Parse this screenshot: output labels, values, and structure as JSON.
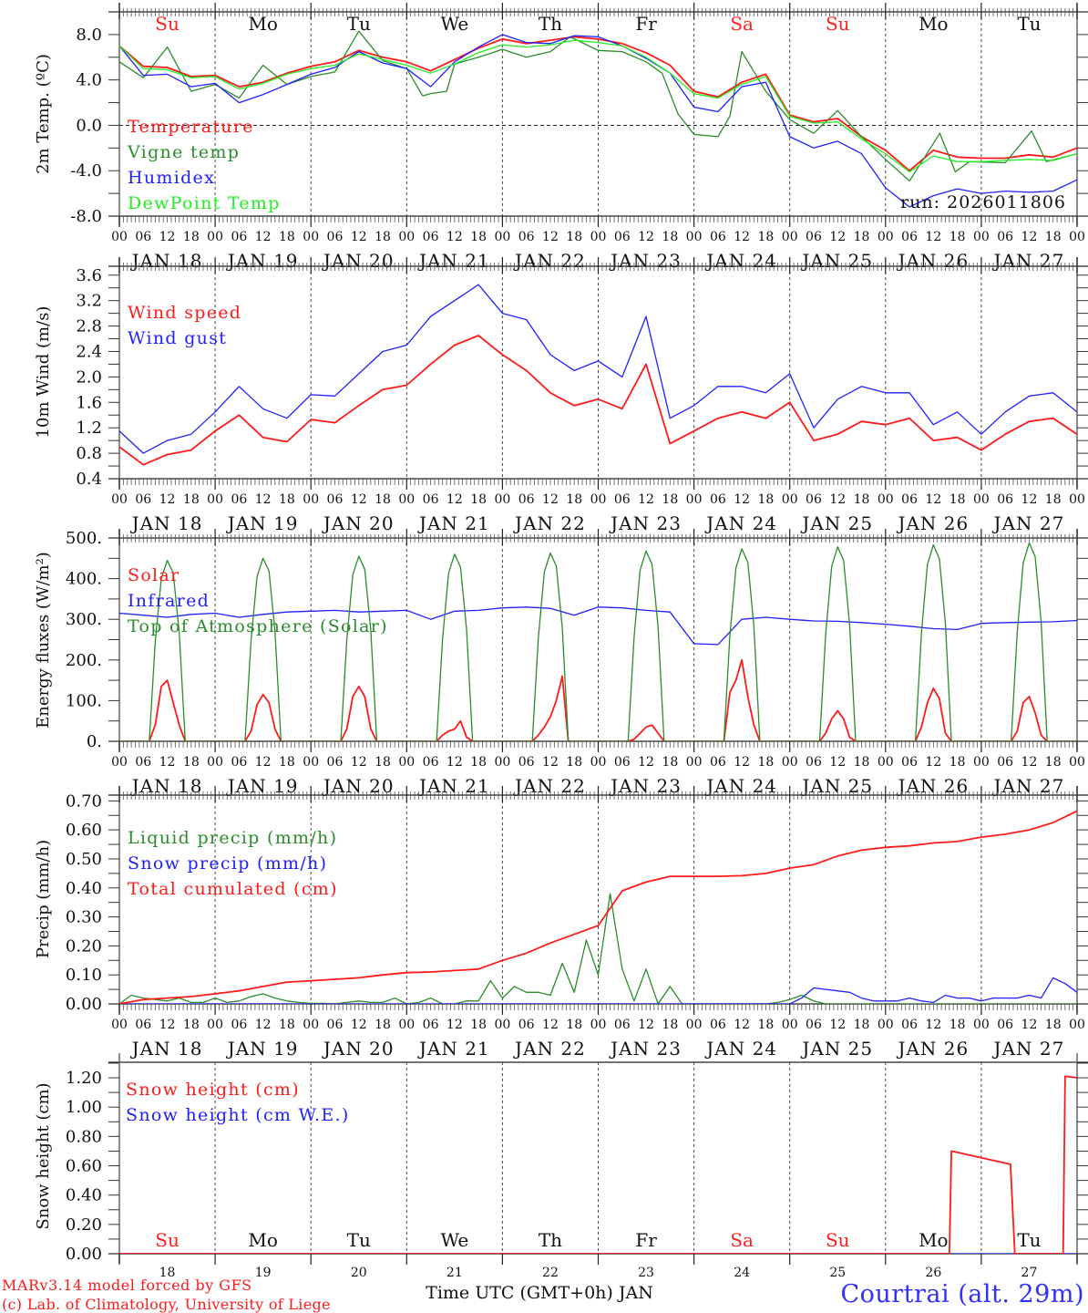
{
  "header": {
    "weekdays": [
      {
        "label": "Su",
        "color": "#ff2020"
      },
      {
        "label": "Mo",
        "color": "#111111"
      },
      {
        "label": "Tu",
        "color": "#111111"
      },
      {
        "label": "We",
        "color": "#111111"
      },
      {
        "label": "Th",
        "color": "#111111"
      },
      {
        "label": "Fr",
        "color": "#111111"
      },
      {
        "label": "Sa",
        "color": "#ff2020"
      },
      {
        "label": "Su",
        "color": "#ff2020"
      },
      {
        "label": "Mo",
        "color": "#111111"
      },
      {
        "label": "Tu",
        "color": "#111111"
      }
    ]
  },
  "x_axis": {
    "hour_labels": [
      "00",
      "06",
      "12",
      "18"
    ],
    "final_hour_label": "00",
    "date_labels": [
      "JAN 18",
      "JAN 19",
      "JAN 20",
      "JAN 21",
      "JAN 22",
      "JAN 23",
      "JAN 24",
      "JAN 25",
      "JAN 26",
      "JAN 27"
    ],
    "day_numbers": [
      "18",
      "19",
      "20",
      "21",
      "22",
      "23",
      "24",
      "25",
      "26",
      "27"
    ],
    "title": "Time UTC (GMT+0h) JAN",
    "range_hours": [
      0,
      240
    ]
  },
  "run_label": "run: 2026011806",
  "footer": {
    "credit_line1": "MARv3.14 model forced by GFS",
    "credit_line2": "(c) Lab. of Climatology, University of Liege",
    "station": "Courtrai (alt. 29m)"
  },
  "colors": {
    "red": "#ff1a1a",
    "blue": "#2020ff",
    "dark_green": "#2a8c2a",
    "light_green": "#22ee22",
    "axis": "#222222"
  },
  "chart_data": [
    {
      "type": "line",
      "title": "",
      "ylabel": "2m Temp. (ºC)",
      "ylim": [
        -8,
        10
      ],
      "yticks": [
        "8.0",
        "4.0",
        "0.0",
        "-4.0",
        "-8.0"
      ],
      "zero_line": true,
      "series": [
        {
          "name": "Temperature",
          "color": "#ff1a1a",
          "x_step_hours": 6,
          "y": [
            7.0,
            5.2,
            5.1,
            4.3,
            4.4,
            3.4,
            3.8,
            4.6,
            5.2,
            5.6,
            6.6,
            6.0,
            5.6,
            4.8,
            5.8,
            6.8,
            7.6,
            7.2,
            7.5,
            7.8,
            7.6,
            7.2,
            6.4,
            5.3,
            3.0,
            2.5,
            3.8,
            4.5,
            0.9,
            0.3,
            0.6,
            -1.0,
            -2.2,
            -4.0,
            -2.2,
            -2.8,
            -2.9,
            -2.9,
            -2.6,
            -2.8,
            -2.0
          ]
        },
        {
          "name": "Vigne temp",
          "color": "#2a8c2a",
          "x": [
            0,
            6,
            12,
            18,
            24,
            30,
            36,
            42,
            48,
            54,
            60,
            66,
            72,
            76,
            78,
            82,
            84,
            90,
            96,
            102,
            108,
            113,
            120,
            126,
            132,
            136,
            140,
            144,
            150,
            153,
            156,
            162,
            168,
            174,
            180,
            186,
            192,
            198,
            205.6,
            209.5,
            213,
            222,
            228.6,
            232.3,
            240
          ],
          "y": [
            5.6,
            4.2,
            6.9,
            3.0,
            3.6,
            2.4,
            5.3,
            3.6,
            4.3,
            4.7,
            8.3,
            5.7,
            5.0,
            2.6,
            2.8,
            3.0,
            5.4,
            6.0,
            6.7,
            6.0,
            6.5,
            7.8,
            6.6,
            6.5,
            5.6,
            4.6,
            1.0,
            -0.8,
            -1.0,
            0.8,
            6.5,
            3.0,
            0.5,
            -0.7,
            1.3,
            -1.0,
            -3.0,
            -4.9,
            -0.7,
            -4.1,
            -3.2,
            -3.3,
            -0.5,
            -3.2,
            -2.5
          ]
        },
        {
          "name": "Humidex",
          "color": "#2020ff",
          "x_step_hours": 6,
          "y": [
            7.0,
            4.4,
            4.5,
            3.4,
            3.7,
            2.0,
            2.7,
            3.6,
            4.5,
            5.1,
            6.5,
            5.5,
            5.0,
            3.4,
            5.6,
            6.9,
            8.0,
            7.3,
            7.2,
            7.9,
            7.8,
            7.0,
            5.9,
            4.6,
            1.6,
            1.2,
            3.4,
            3.8,
            -1.0,
            -2.0,
            -1.4,
            -2.5,
            -5.5,
            -7.2,
            -6.2,
            -5.6,
            -6.0,
            -5.8,
            -5.9,
            -5.8,
            -4.8
          ]
        },
        {
          "name": "DewPoint Temp",
          "color": "#22ee22",
          "x_step_hours": 6,
          "y": [
            7.0,
            5.0,
            4.9,
            4.2,
            4.3,
            3.2,
            3.7,
            4.5,
            5.0,
            5.3,
            6.3,
            5.8,
            5.3,
            4.6,
            5.4,
            6.4,
            7.1,
            6.9,
            7.1,
            7.5,
            7.3,
            7.0,
            6.0,
            4.6,
            2.8,
            2.4,
            3.6,
            4.3,
            0.8,
            0.2,
            0.3,
            -1.2,
            -2.5,
            -4.1,
            -2.7,
            -3.2,
            -3.2,
            -3.1,
            -3.0,
            -3.1,
            -2.5
          ]
        }
      ]
    },
    {
      "type": "line",
      "title": "",
      "ylabel": "10m Wind (m/s)",
      "ylim": [
        0.4,
        3.74
      ],
      "yticks": [
        "3.6",
        "3.2",
        "2.8",
        "2.4",
        "2.0",
        "1.6",
        "1.2",
        "0.8",
        "0.4"
      ],
      "series": [
        {
          "name": "Wind speed",
          "color": "#ff1a1a",
          "x_step_hours": 6,
          "y": [
            0.9,
            0.62,
            0.78,
            0.85,
            1.15,
            1.4,
            1.05,
            0.98,
            1.33,
            1.28,
            1.55,
            1.8,
            1.87,
            2.2,
            2.5,
            2.65,
            2.35,
            2.1,
            1.75,
            1.55,
            1.65,
            1.5,
            2.2,
            0.95,
            1.15,
            1.35,
            1.45,
            1.35,
            1.6,
            1.0,
            1.1,
            1.3,
            1.25,
            1.35,
            1.0,
            1.05,
            0.85,
            1.1,
            1.3,
            1.35,
            1.1
          ]
        },
        {
          "name": "Wind gust",
          "color": "#2020ff",
          "x_step_hours": 6,
          "y": [
            1.15,
            0.8,
            1.0,
            1.1,
            1.45,
            1.85,
            1.5,
            1.35,
            1.72,
            1.7,
            2.05,
            2.4,
            2.5,
            2.95,
            3.2,
            3.45,
            3.0,
            2.9,
            2.35,
            2.1,
            2.25,
            2.0,
            2.95,
            1.35,
            1.55,
            1.85,
            1.85,
            1.75,
            2.05,
            1.2,
            1.65,
            1.85,
            1.75,
            1.75,
            1.25,
            1.45,
            1.1,
            1.45,
            1.7,
            1.75,
            1.45
          ]
        }
      ]
    },
    {
      "type": "line",
      "title": "",
      "ylabel": "Energy fluxes (W/m²)",
      "ylim": [
        0,
        500
      ],
      "yticks": [
        "500.",
        "400.",
        "300.",
        "200.",
        "100.",
        "0."
      ],
      "series": [
        {
          "name": "Solar",
          "color": "#ff1a1a",
          "x_daily_hours": [
            7.5,
            9,
            10.5,
            12,
            13.5,
            15,
            16.5
          ],
          "daily_values": [
            [
              0,
              40,
              135,
              150,
              95,
              40,
              0
            ],
            [
              0,
              25,
              90,
              115,
              95,
              30,
              0
            ],
            [
              0,
              30,
              110,
              135,
              110,
              30,
              0
            ],
            [
              0,
              15,
              25,
              30,
              50,
              10,
              0
            ],
            [
              0,
              15,
              35,
              60,
              100,
              160,
              0
            ],
            [
              0,
              5,
              20,
              35,
              40,
              20,
              0
            ],
            [
              0,
              120,
              150,
              200,
              110,
              40,
              0
            ],
            [
              0,
              20,
              55,
              75,
              55,
              10,
              0
            ],
            [
              0,
              35,
              95,
              130,
              105,
              20,
              0
            ],
            [
              0,
              25,
              95,
              110,
              70,
              15,
              0
            ]
          ]
        },
        {
          "name": "Infrared",
          "color": "#2020ff",
          "x_step_hours": 6,
          "y": [
            315,
            310,
            305,
            312,
            315,
            305,
            312,
            318,
            320,
            322,
            318,
            320,
            322,
            300,
            320,
            322,
            328,
            330,
            327,
            310,
            330,
            328,
            322,
            318,
            240,
            238,
            300,
            305,
            300,
            296,
            295,
            292,
            288,
            283,
            277,
            275,
            290,
            292,
            293,
            294,
            297
          ]
        },
        {
          "name": "Top of Atmosphere (Solar)",
          "color": "#2a8c2a",
          "x_daily_hours": [
            7.5,
            9,
            10.5,
            12,
            13.5,
            15,
            16.5
          ],
          "daily_values": [
            [
              0,
              245,
              400,
              445,
              414,
              267,
              0
            ],
            [
              0,
              248,
              405,
              450,
              419,
              270,
              0
            ],
            [
              0,
              250,
              410,
              455,
              423,
              273,
              0
            ],
            [
              0,
              253,
              414,
              460,
              428,
              276,
              0
            ],
            [
              0,
              255,
              417,
              463,
              431,
              278,
              0
            ],
            [
              0,
              257,
              421,
              468,
              435,
              281,
              0
            ],
            [
              0,
              260,
              426,
              473,
              440,
              284,
              0
            ],
            [
              0,
              263,
              430,
              478,
              445,
              287,
              0
            ],
            [
              0,
              266,
              435,
              483,
              449,
              290,
              0
            ],
            [
              0,
              268,
              439,
              488,
              454,
              293,
              0
            ]
          ]
        }
      ]
    },
    {
      "type": "line",
      "title": "",
      "ylabel": "Precip (mm/h)",
      "ylim": [
        0,
        0.72
      ],
      "yticks": [
        "0.70",
        "0.60",
        "0.50",
        "0.40",
        "0.30",
        "0.20",
        "0.10",
        "0.00"
      ],
      "series": [
        {
          "name": "Liquid precip (mm/h)",
          "color": "#2a8c2a",
          "x_step_hours": 3,
          "y": [
            0,
            0.03,
            0.02,
            0.015,
            0.01,
            0.02,
            0.005,
            0.005,
            0.02,
            0.005,
            0.01,
            0.025,
            0.035,
            0.02,
            0.01,
            0.005,
            0.002,
            0.002,
            0,
            0.005,
            0.01,
            0.005,
            0.005,
            0.02,
            0,
            0.005,
            0.02,
            0,
            0,
            0.01,
            0.01,
            0.08,
            0.02,
            0.06,
            0.04,
            0.04,
            0.03,
            0.14,
            0.04,
            0.22,
            0.1,
            0.38,
            0.12,
            0.01,
            0.12,
            0,
            0.06,
            0,
            0,
            0,
            0,
            0,
            0,
            0,
            0,
            0.005,
            0.015,
            0.03,
            0.01,
            0,
            0,
            0,
            0,
            0,
            0,
            0,
            0,
            0,
            0,
            0,
            0,
            0,
            0,
            0,
            0,
            0,
            0,
            0,
            0,
            0,
            0
          ]
        },
        {
          "name": "Snow precip (mm/h)",
          "color": "#2020ff",
          "x_step_hours": 3,
          "y": [
            0,
            0,
            0,
            0,
            0,
            0,
            0,
            0,
            0,
            0,
            0,
            0,
            0,
            0,
            0,
            0,
            0,
            0,
            0,
            0,
            0,
            0,
            0,
            0,
            0,
            0,
            0,
            0,
            0,
            0,
            0,
            0,
            0,
            0,
            0,
            0,
            0,
            0,
            0,
            0,
            0,
            0,
            0,
            0,
            0,
            0,
            0,
            0,
            0,
            0,
            0,
            0,
            0,
            0,
            0,
            0,
            0,
            0.02,
            0.055,
            0.05,
            0.045,
            0.04,
            0.02,
            0.01,
            0.01,
            0.01,
            0.02,
            0.01,
            0.005,
            0.03,
            0.02,
            0.02,
            0.01,
            0.02,
            0.02,
            0.02,
            0.03,
            0.02,
            0.09,
            0.07,
            0.04
          ]
        },
        {
          "name": "Total cumulated (cm)",
          "color": "#ff1a1a",
          "x_step_hours": 6,
          "y": [
            0,
            0.015,
            0.02,
            0.025,
            0.035,
            0.045,
            0.06,
            0.075,
            0.08,
            0.085,
            0.09,
            0.1,
            0.108,
            0.11,
            0.115,
            0.12,
            0.15,
            0.175,
            0.21,
            0.24,
            0.27,
            0.39,
            0.42,
            0.44,
            0.44,
            0.44,
            0.442,
            0.45,
            0.468,
            0.48,
            0.51,
            0.53,
            0.54,
            0.545,
            0.555,
            0.56,
            0.575,
            0.585,
            0.6,
            0.625,
            0.665
          ]
        }
      ]
    },
    {
      "type": "line",
      "title": "",
      "ylabel": "Snow height (cm)",
      "ylim": [
        0,
        1.306
      ],
      "yticks": [
        "1.20",
        "1.00",
        "0.80",
        "0.60",
        "0.40",
        "0.20",
        "0.00"
      ],
      "series": [
        {
          "name": "Snow height (cm W.E.)",
          "color": "#2020ff",
          "x": [
            0,
            240
          ],
          "y": [
            0,
            0
          ]
        },
        {
          "name": "Snow height (cm)",
          "color": "#ff1a1a",
          "x": [
            0,
            208,
            208.5,
            223.3,
            224.4,
            236.5,
            237,
            240
          ],
          "y": [
            0,
            0,
            0.7,
            0.61,
            0,
            0,
            1.21,
            1.2
          ]
        }
      ]
    }
  ]
}
